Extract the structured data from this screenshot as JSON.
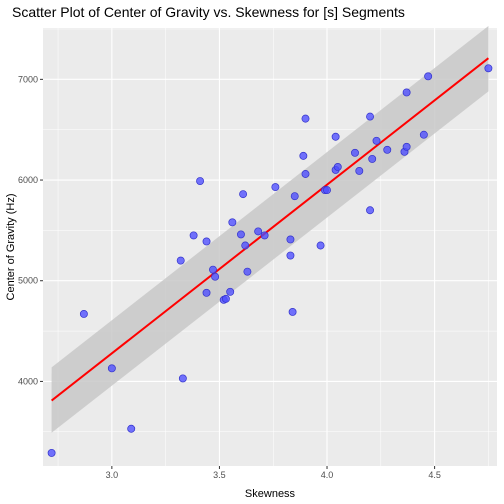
{
  "chart_data": {
    "type": "scatter",
    "title": "Scatter Plot of Center of Gravity vs. Skewness for [s] Segments",
    "xlabel": "Skewness",
    "ylabel": "Center of Gravity (Hz)",
    "xlim": [
      2.68,
      4.79
    ],
    "ylim": [
      3160,
      7510
    ],
    "xticks": [
      3.0,
      3.5,
      4.0,
      4.5
    ],
    "xtick_labels": [
      "3.0",
      "3.5",
      "4.0",
      "4.5"
    ],
    "yticks": [
      4000,
      5000,
      6000,
      7000
    ],
    "ytick_labels": [
      "4000",
      "5000",
      "6000",
      "7000"
    ],
    "grid": true,
    "legend": "none",
    "colors": {
      "panel": "#ebebeb",
      "grid": "#ffffff",
      "points": "#4d4dff",
      "point_edge": "#3333cc",
      "fit_line": "#ff0000",
      "ci_band": "#c8c8c8"
    },
    "points": [
      {
        "x": 2.72,
        "y": 3290
      },
      {
        "x": 2.87,
        "y": 4670
      },
      {
        "x": 3.0,
        "y": 4130
      },
      {
        "x": 3.09,
        "y": 3530
      },
      {
        "x": 3.32,
        "y": 5200
      },
      {
        "x": 3.33,
        "y": 4030
      },
      {
        "x": 3.38,
        "y": 5450
      },
      {
        "x": 3.41,
        "y": 5990
      },
      {
        "x": 3.44,
        "y": 4880
      },
      {
        "x": 3.44,
        "y": 5390
      },
      {
        "x": 3.47,
        "y": 5110
      },
      {
        "x": 3.48,
        "y": 5040
      },
      {
        "x": 3.52,
        "y": 4810
      },
      {
        "x": 3.53,
        "y": 4820
      },
      {
        "x": 3.55,
        "y": 4890
      },
      {
        "x": 3.56,
        "y": 5580
      },
      {
        "x": 3.6,
        "y": 5460
      },
      {
        "x": 3.61,
        "y": 5860
      },
      {
        "x": 3.62,
        "y": 5350
      },
      {
        "x": 3.63,
        "y": 5090
      },
      {
        "x": 3.68,
        "y": 5490
      },
      {
        "x": 3.71,
        "y": 5450
      },
      {
        "x": 3.76,
        "y": 5930
      },
      {
        "x": 3.83,
        "y": 5250
      },
      {
        "x": 3.83,
        "y": 5410
      },
      {
        "x": 3.84,
        "y": 4690
      },
      {
        "x": 3.85,
        "y": 5840
      },
      {
        "x": 3.89,
        "y": 6240
      },
      {
        "x": 3.9,
        "y": 6610
      },
      {
        "x": 3.9,
        "y": 6060
      },
      {
        "x": 3.97,
        "y": 5350
      },
      {
        "x": 3.99,
        "y": 5900
      },
      {
        "x": 4.0,
        "y": 5900
      },
      {
        "x": 4.04,
        "y": 6430
      },
      {
        "x": 4.04,
        "y": 6100
      },
      {
        "x": 4.05,
        "y": 6130
      },
      {
        "x": 4.13,
        "y": 6270
      },
      {
        "x": 4.15,
        "y": 6090
      },
      {
        "x": 4.2,
        "y": 5700
      },
      {
        "x": 4.2,
        "y": 6630
      },
      {
        "x": 4.21,
        "y": 6210
      },
      {
        "x": 4.23,
        "y": 6390
      },
      {
        "x": 4.28,
        "y": 6300
      },
      {
        "x": 4.36,
        "y": 6280
      },
      {
        "x": 4.37,
        "y": 6330
      },
      {
        "x": 4.37,
        "y": 6870
      },
      {
        "x": 4.45,
        "y": 6450
      },
      {
        "x": 4.47,
        "y": 7030
      },
      {
        "x": 4.75,
        "y": 7110
      }
    ],
    "fit": {
      "x": [
        2.72,
        4.75
      ],
      "y": [
        3810,
        7210
      ],
      "ci_upper": [
        4140,
        7530
      ],
      "ci_lower": [
        3490,
        6880
      ]
    }
  }
}
